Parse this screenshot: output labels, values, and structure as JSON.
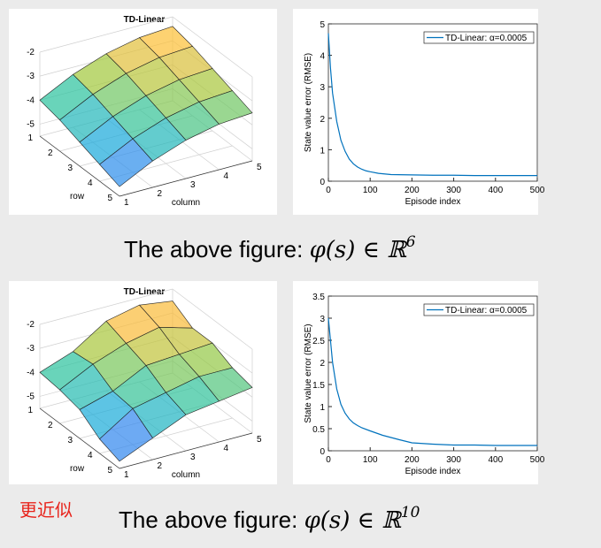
{
  "slide": {
    "note": "更近似",
    "captions": [
      {
        "text": "The above figure: ",
        "math": "φ(s) ∈ ℝ",
        "exponent": "6"
      },
      {
        "text": "The above figure: ",
        "math": "φ(s) ∈ ℝ",
        "exponent": "10"
      }
    ]
  },
  "chart_data": [
    {
      "type": "surface",
      "title": "TD-Linear",
      "xlabel": "column",
      "ylabel": "row",
      "xlim": [
        1,
        5
      ],
      "xticks": [
        1,
        2,
        3,
        4,
        5
      ],
      "ylim": [
        1,
        5
      ],
      "yticks": [
        1,
        2,
        3,
        4,
        5
      ],
      "zlim": [
        -5.5,
        -2
      ],
      "zticks": [
        -5,
        -4,
        -3,
        -2
      ],
      "colormap": "parula",
      "z": [
        [
          -4.0,
          -3.3,
          -2.8,
          -2.5,
          -2.4
        ],
        [
          -4.2,
          -3.5,
          -3.0,
          -2.7,
          -2.6
        ],
        [
          -4.5,
          -3.8,
          -3.3,
          -3.0,
          -2.9
        ],
        [
          -4.8,
          -4.1,
          -3.6,
          -3.3,
          -3.2
        ],
        [
          -5.1,
          -4.4,
          -3.9,
          -3.6,
          -3.5
        ]
      ]
    },
    {
      "type": "line",
      "xlabel": "Episode index",
      "ylabel": "State value error (RMSE)",
      "x": [
        0,
        5,
        10,
        20,
        30,
        40,
        50,
        60,
        70,
        80,
        90,
        100,
        120,
        150,
        200,
        250,
        300,
        350,
        400,
        450,
        500
      ],
      "series": [
        {
          "name": "TD-Linear: α=0.0005",
          "color": "#0072bd",
          "values": [
            4.7,
            3.6,
            2.8,
            1.9,
            1.3,
            0.95,
            0.7,
            0.55,
            0.45,
            0.38,
            0.33,
            0.3,
            0.25,
            0.21,
            0.2,
            0.19,
            0.19,
            0.18,
            0.18,
            0.18,
            0.18
          ]
        }
      ],
      "xlim": [
        0,
        500
      ],
      "xticks": [
        0,
        100,
        200,
        300,
        400,
        500
      ],
      "ylim": [
        0,
        5
      ],
      "yticks": [
        0,
        1,
        2,
        3,
        4,
        5
      ],
      "legend": "upper right"
    },
    {
      "type": "surface",
      "title": "TD-Linear",
      "xlabel": "column",
      "ylabel": "row",
      "xlim": [
        1,
        5
      ],
      "xticks": [
        1,
        2,
        3,
        4,
        5
      ],
      "ylim": [
        1,
        5
      ],
      "yticks": [
        1,
        2,
        3,
        4,
        5
      ],
      "zlim": [
        -5.5,
        -2
      ],
      "zticks": [
        -5,
        -4,
        -3,
        -2
      ],
      "colormap": "parula",
      "z": [
        [
          -4.0,
          -3.5,
          -2.6,
          -2.3,
          -2.5
        ],
        [
          -4.1,
          -3.4,
          -2.9,
          -2.6,
          -3.0
        ],
        [
          -4.3,
          -3.9,
          -3.2,
          -3.1,
          -3.0
        ],
        [
          -4.9,
          -4.0,
          -3.7,
          -3.4,
          -3.4
        ],
        [
          -5.2,
          -4.6,
          -4.0,
          -3.8,
          -3.6
        ]
      ]
    },
    {
      "type": "line",
      "xlabel": "Episode index",
      "ylabel": "State value error (RMSE)",
      "x": [
        0,
        5,
        10,
        20,
        30,
        40,
        50,
        60,
        70,
        80,
        100,
        130,
        170,
        200,
        250,
        300,
        350,
        400,
        450,
        500
      ],
      "series": [
        {
          "name": "TD-Linear: α=0.0005",
          "color": "#0072bd",
          "values": [
            3.0,
            2.5,
            2.0,
            1.4,
            1.05,
            0.85,
            0.72,
            0.63,
            0.57,
            0.52,
            0.45,
            0.35,
            0.25,
            0.18,
            0.15,
            0.13,
            0.13,
            0.12,
            0.12,
            0.12
          ]
        }
      ],
      "xlim": [
        0,
        500
      ],
      "xticks": [
        0,
        100,
        200,
        300,
        400,
        500
      ],
      "ylim": [
        0,
        3.5
      ],
      "yticks": [
        0,
        0.5,
        1,
        1.5,
        2,
        2.5,
        3,
        3.5
      ],
      "legend": "upper right"
    }
  ]
}
